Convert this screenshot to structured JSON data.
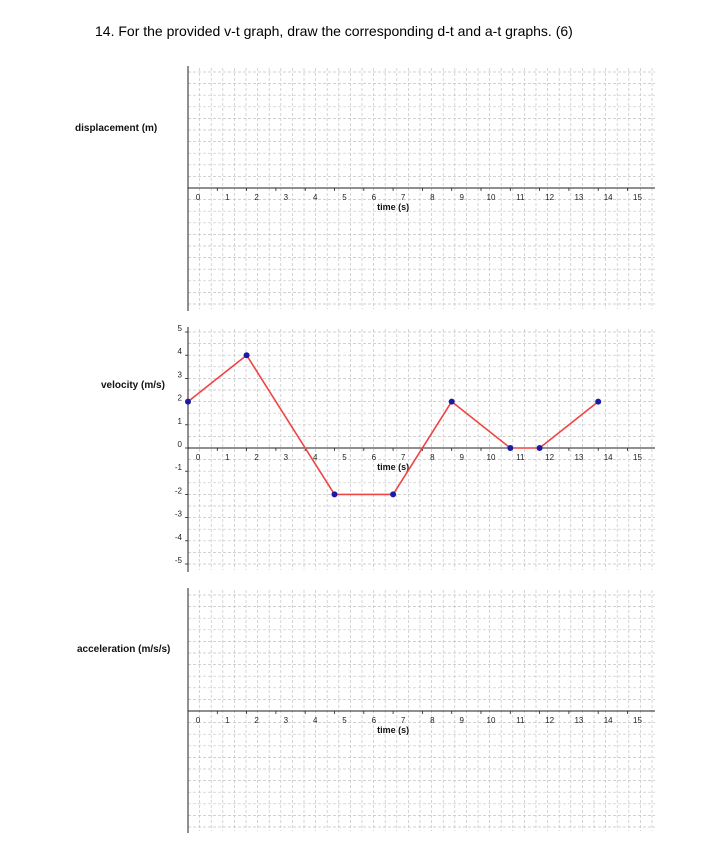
{
  "question": "14. For the provided v-t graph, draw the corresponding d-t and a-t graphs. (6)",
  "chart_data": [
    {
      "type": "line",
      "title": "",
      "ylabel": "displacement (m)",
      "xlabel": "time (s)",
      "x_ticks": [
        "0",
        "1",
        "2",
        "3",
        "4",
        "5",
        "6",
        "7",
        "8",
        "9",
        "10",
        "11",
        "12",
        "13",
        "14",
        "15"
      ],
      "xlim": [
        0,
        15
      ],
      "grid": true,
      "series": []
    },
    {
      "type": "line",
      "title": "",
      "ylabel": "velocity (m/s)",
      "xlabel": "time (s)",
      "x_ticks": [
        "0",
        "1",
        "2",
        "3",
        "4",
        "5",
        "6",
        "7",
        "8",
        "9",
        "10",
        "11",
        "12",
        "13",
        "14",
        "15"
      ],
      "y_ticks": [
        "5",
        "4",
        "3",
        "2",
        "1",
        "0",
        "-1",
        "-2",
        "-3",
        "-4",
        "-5"
      ],
      "xlim": [
        0,
        15
      ],
      "ylim": [
        -5,
        5
      ],
      "grid": true,
      "line_color": "#ee4444",
      "point_color": "#1a1aa8",
      "series": [
        {
          "x": [
            0,
            2,
            5,
            7,
            9,
            11,
            12,
            14
          ],
          "y": [
            2,
            4,
            -2,
            -2,
            2,
            0,
            0,
            2
          ]
        }
      ]
    },
    {
      "type": "line",
      "title": "",
      "ylabel": "acceleration (m/s/s)",
      "xlabel": "time (s)",
      "x_ticks": [
        "0",
        "1",
        "2",
        "3",
        "4",
        "5",
        "6",
        "7",
        "8",
        "9",
        "10",
        "11",
        "12",
        "13",
        "14",
        "15"
      ],
      "xlim": [
        0,
        15
      ],
      "grid": true,
      "series": []
    }
  ]
}
